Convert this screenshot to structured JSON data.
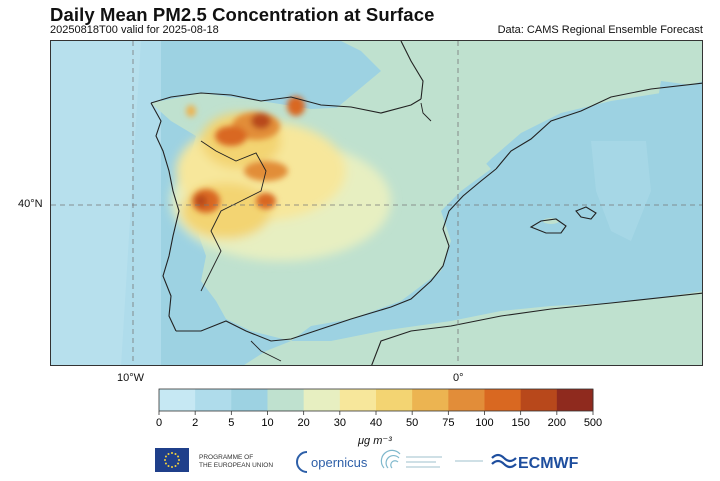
{
  "title": "Daily Mean PM2.5 Concentration at Surface",
  "subtitle": "20250818T00 valid for 2025-08-18",
  "source": "Data: CAMS Regional Ensemble Forecast",
  "map": {
    "region": "Iberian Peninsula",
    "gridlines": {
      "longitudes": [
        "10°W",
        "0°"
      ],
      "latitudes": [
        "40°N"
      ]
    },
    "background_level": "10-20",
    "sea_level": "2-10",
    "hotspot_region": "Northwestern Iberia (Galicia / northern Portugal)"
  },
  "colorbar": {
    "ticks": [
      "0",
      "2",
      "5",
      "10",
      "20",
      "30",
      "40",
      "50",
      "75",
      "100",
      "150",
      "200",
      "500"
    ],
    "colors": [
      "#c6e8f3",
      "#afdceb",
      "#9dd2e2",
      "#bfe1cf",
      "#e7efc1",
      "#f7e79b",
      "#f3d472",
      "#ecb451",
      "#e28d39",
      "#d96821",
      "#b8481b",
      "#8f2a1e"
    ],
    "unit": "μg m⁻³"
  },
  "logos": {
    "eu_line1": "PROGRAMME OF",
    "eu_line2": "THE EUROPEAN UNION",
    "copernicus": "opernicus",
    "ecmwf": "ECMWF",
    "eu_icon": "eu-flag-icon",
    "copernicus_icon": "copernicus-c-icon",
    "atmosphere_icon": "atmosphere-monitoring-icon",
    "ecmwf_icon": "ecmwf-wave-icon"
  }
}
